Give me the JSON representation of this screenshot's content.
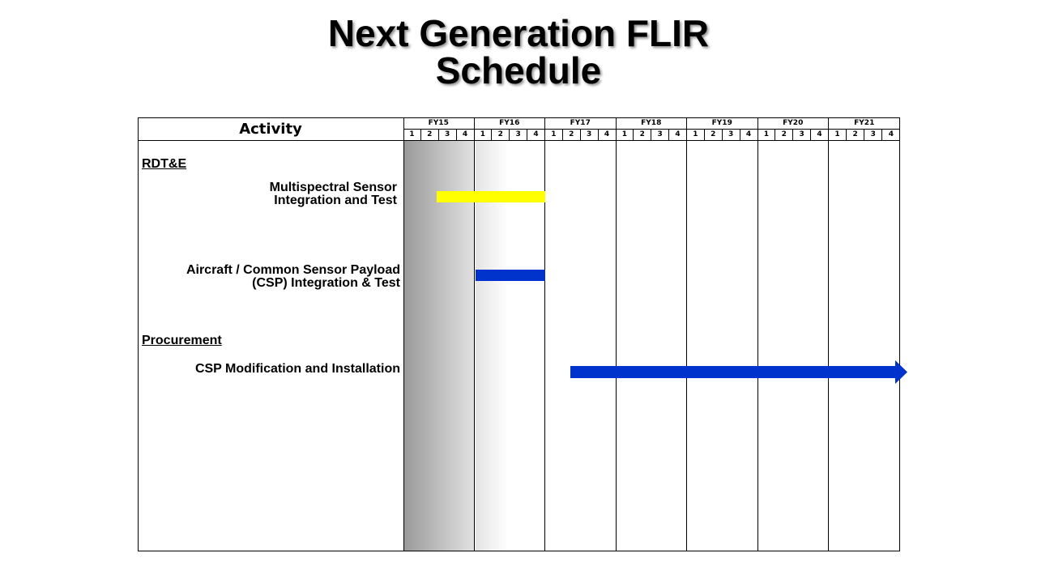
{
  "title": {
    "line1": "Next Generation FLIR",
    "line2": "Schedule"
  },
  "activity_header": "Activity",
  "fiscal_years": [
    "FY15",
    "FY16",
    "FY17",
    "FY18",
    "FY19",
    "FY20",
    "FY21"
  ],
  "quarters": [
    "1",
    "2",
    "3",
    "4"
  ],
  "sections": {
    "rdte": "RDT&E",
    "procurement": "Procurement"
  },
  "activities": {
    "multispectral": {
      "line1": "Multispectral Sensor",
      "line2": "Integration and Test",
      "start": "FY15 Q2 (mid)",
      "end": "FY16 Q4 end",
      "color": "#ffff00"
    },
    "csp_integration": {
      "line1": "Aircraft / Common Sensor Payload",
      "line2": "(CSP) Integration & Test",
      "start": "FY16 Q1",
      "end": "FY16 Q4 end",
      "color": "#0033cc"
    },
    "csp_modification": {
      "line1": "CSP Modification and Installation",
      "start": "FY17 Q2 (mid)",
      "end": "beyond FY21",
      "color": "#0033cc"
    }
  },
  "colors": {
    "grid": "#000000",
    "shading_dark": "#9a9a9a",
    "shading_light": "#e2e2e2"
  }
}
